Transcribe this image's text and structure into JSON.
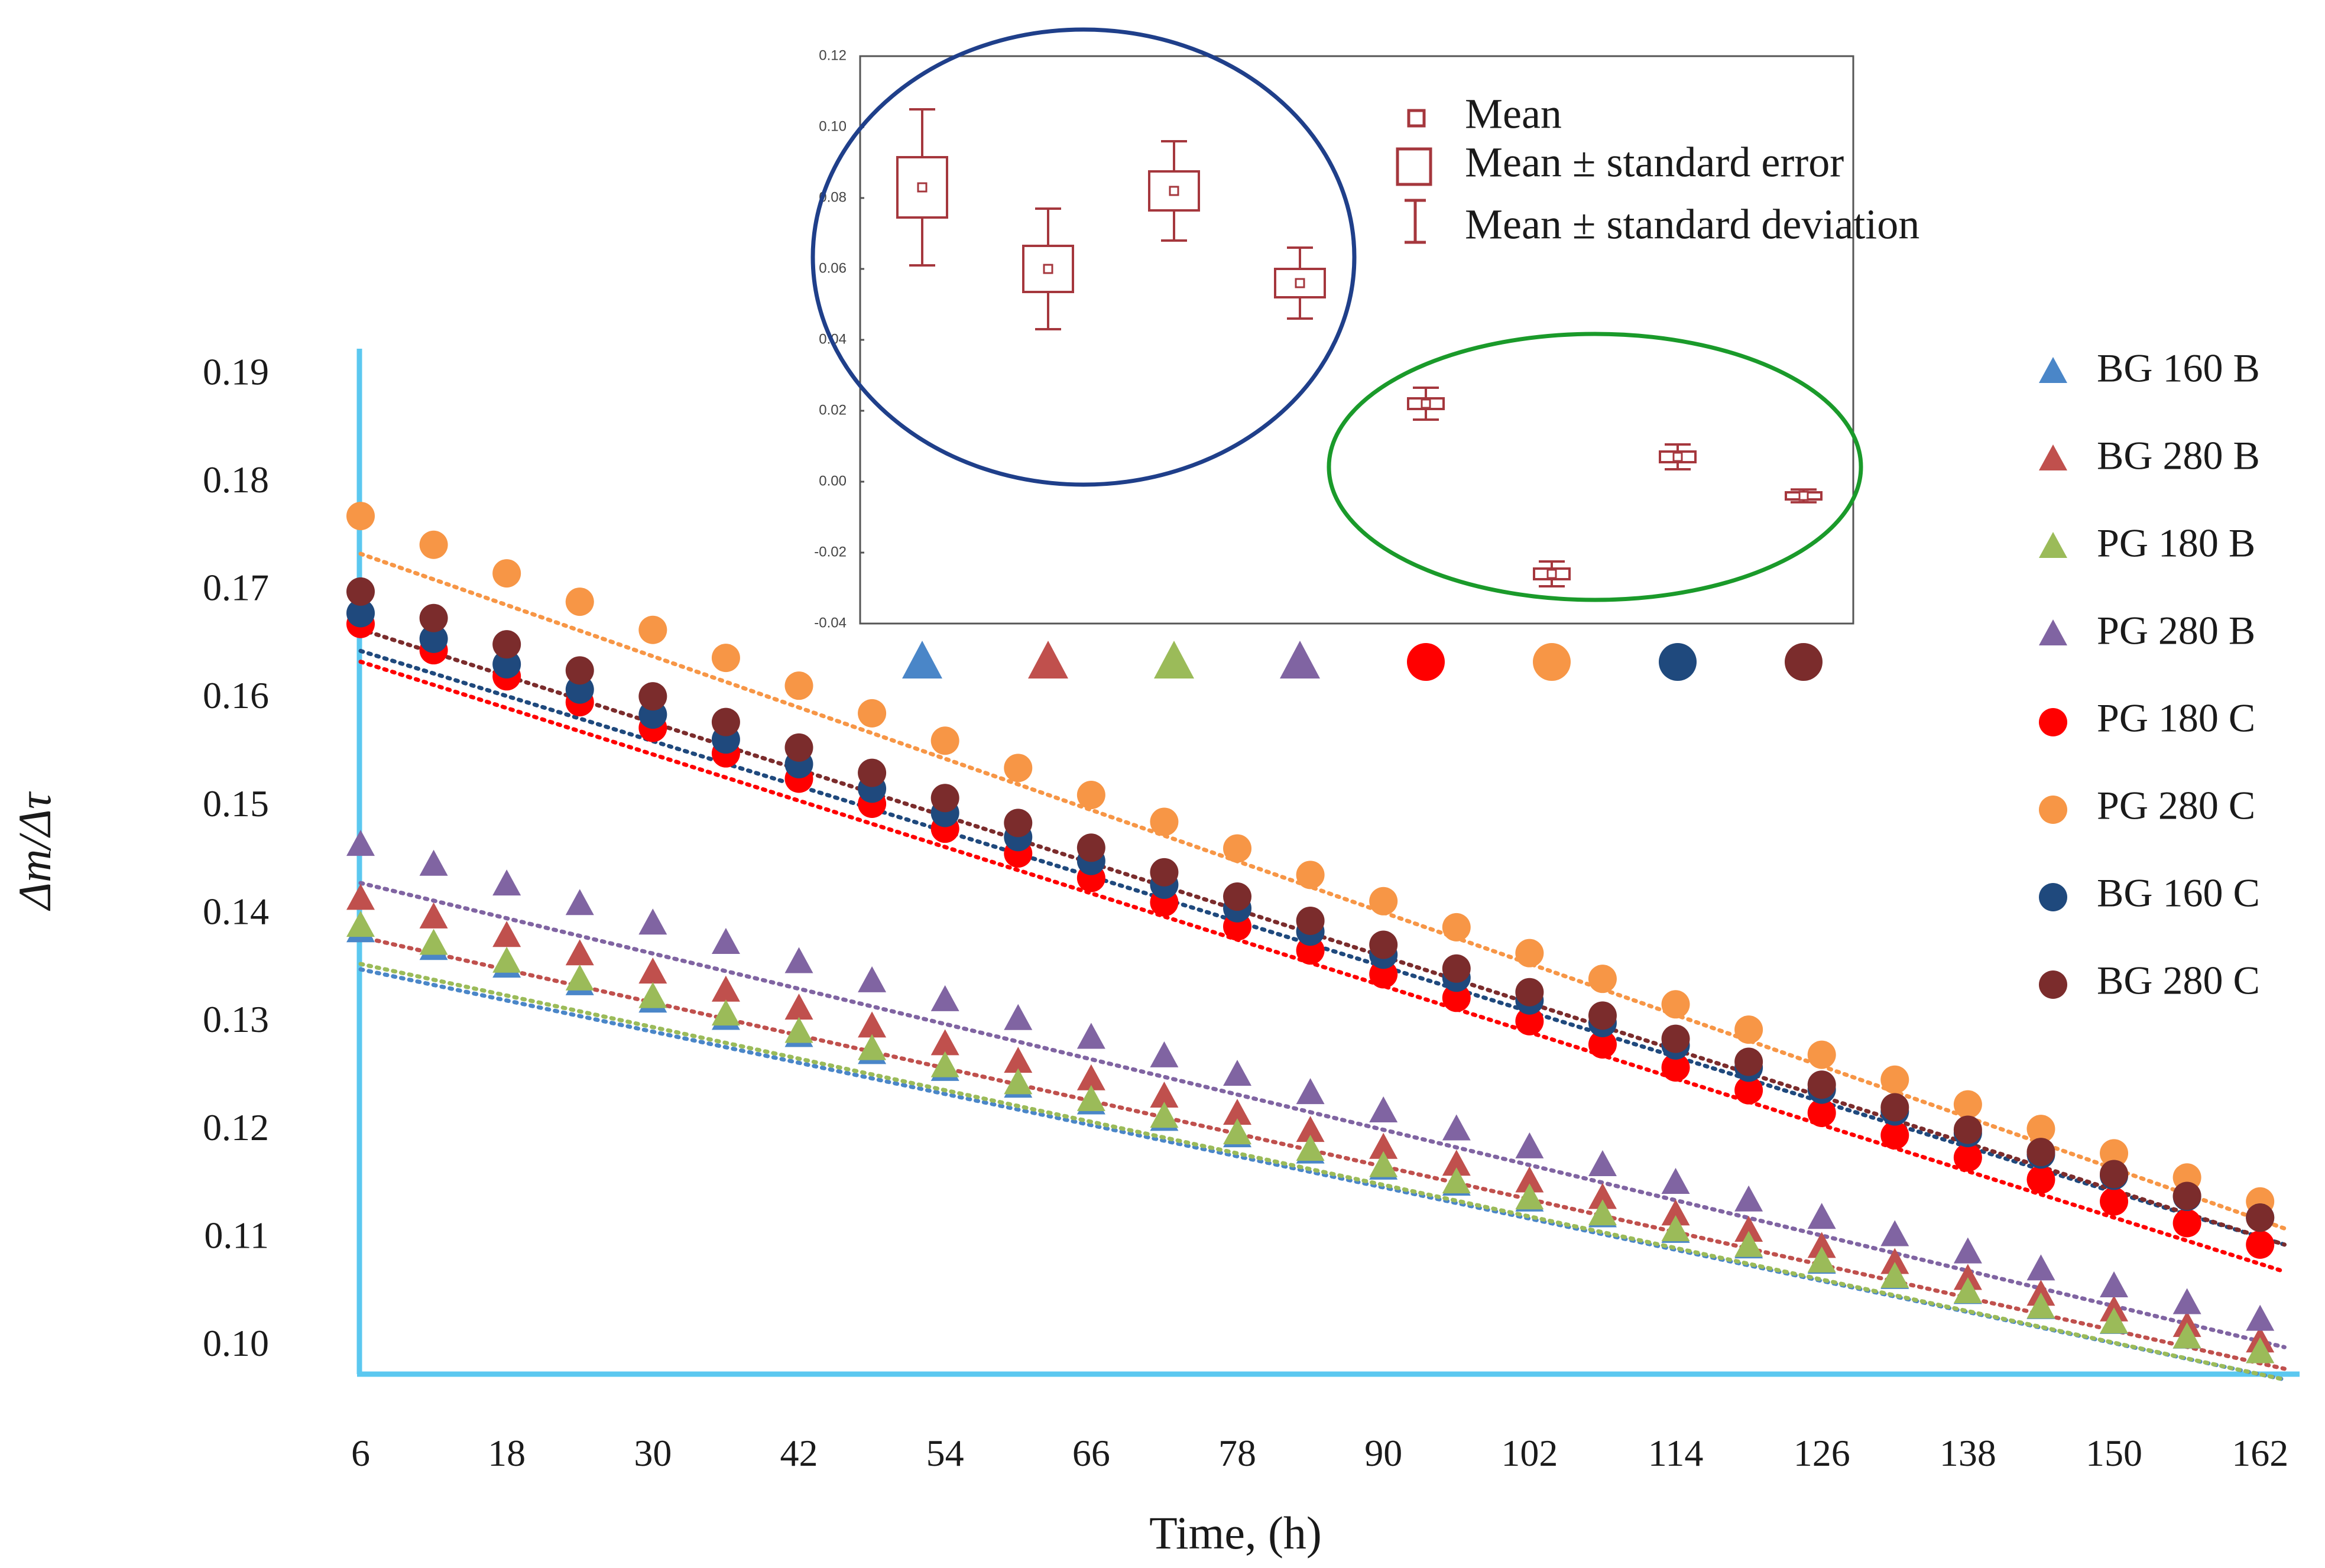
{
  "chart_data": [
    {
      "type": "scatter",
      "title": "",
      "xlabel": "Time, (h)",
      "ylabel": "Δm/Δτ",
      "x_ticks": [
        "6",
        "18",
        "30",
        "42",
        "54",
        "66",
        "78",
        "90",
        "102",
        "114",
        "126",
        "138",
        "150",
        "162"
      ],
      "y_ticks": [
        "0.19",
        "0.18",
        "0.17",
        "0.16",
        "0.15",
        "0.14",
        "0.13",
        "0.12",
        "0.11",
        "0.10"
      ],
      "xlim": [
        6,
        165
      ],
      "ylim": [
        0.0975,
        0.1925
      ],
      "trendlines": "linear, dotted",
      "legend_position": "right",
      "series": [
        {
          "name": "BG 160 B",
          "marker": "triangle",
          "color": "#4a86c8",
          "start": 0.1385,
          "end": 0.0995
        },
        {
          "name": "BG 280 B",
          "marker": "triangle",
          "color": "#c0504d",
          "start": 0.1415,
          "end": 0.1005
        },
        {
          "name": "PG 180 B",
          "marker": "triangle",
          "color": "#9bbb59",
          "start": 0.139,
          "end": 0.0995
        },
        {
          "name": "PG 280 B",
          "marker": "triangle",
          "color": "#8064a2",
          "start": 0.1465,
          "end": 0.1025
        },
        {
          "name": "PG 180 C",
          "marker": "circle",
          "color": "#ff0000",
          "start": 0.167,
          "end": 0.1095
        },
        {
          "name": "PG 280 C",
          "marker": "circle",
          "color": "#f79646",
          "start": 0.177,
          "end": 0.1135
        },
        {
          "name": "BG 160 C",
          "marker": "circle",
          "color": "#1f497d",
          "start": 0.168,
          "end": 0.112
        },
        {
          "name": "BG 280 C",
          "marker": "circle",
          "color": "#7b2c2c",
          "start": 0.17,
          "end": 0.112
        }
      ]
    },
    {
      "type": "box",
      "title": "",
      "ylim": [
        -0.04,
        0.12
      ],
      "y_ticks": [
        "0.12",
        "0.10",
        "0.08",
        "0.06",
        "0.04",
        "0.02",
        "0.00",
        "-0.02",
        "-0.04"
      ],
      "categories": [
        "BG 160 B",
        "BG 280 B",
        "PG 180 B",
        "PG 280 B",
        "PG 180 C",
        "PG 280 C",
        "BG 160 C",
        "BG 280 C"
      ],
      "mean": [
        0.083,
        0.06,
        0.082,
        0.056,
        0.022,
        -0.026,
        0.007,
        -0.004
      ],
      "standard_error": [
        0.0085,
        0.0065,
        0.0055,
        0.004,
        0.0015,
        0.0015,
        0.0015,
        0.001
      ],
      "standard_deviation": [
        0.022,
        0.017,
        0.014,
        0.01,
        0.0045,
        0.0035,
        0.0035,
        0.0018
      ],
      "legend": [
        "Mean",
        "Mean ± standard error",
        "Mean ± standard deviation"
      ],
      "group_outline_colors": [
        "#1f3f8a",
        "#1a9a2a"
      ],
      "element_color": "#a5373d"
    }
  ]
}
